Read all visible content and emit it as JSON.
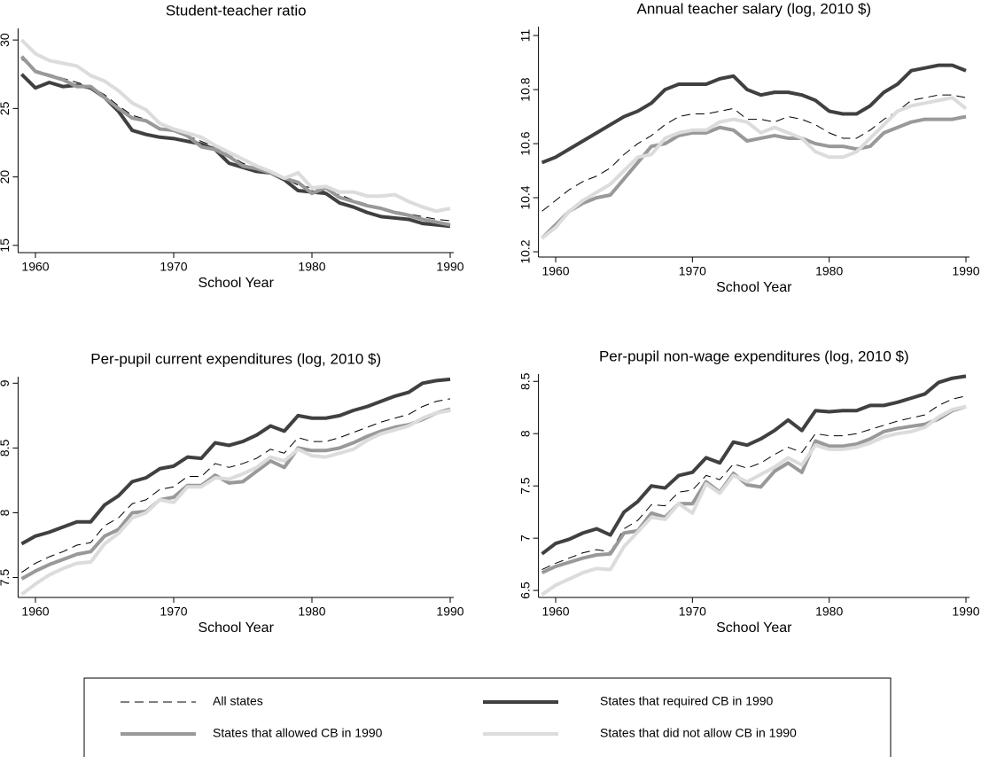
{
  "legend": [
    {
      "name": "All states",
      "color": "#000000",
      "width": 1,
      "dash": "10 6"
    },
    {
      "name": "States that required CB in 1990",
      "color": "#404040",
      "width": 4
    },
    {
      "name": "States that allowed CB in 1990",
      "color": "#999999",
      "width": 4
    },
    {
      "name": "States that did not allow CB in 1990",
      "color": "#dcdcdc",
      "width": 4
    }
  ],
  "chart_data": [
    {
      "type": "line",
      "title": "Student-teacher ratio",
      "x_label": "School Year",
      "x": [
        1959,
        1960,
        1961,
        1962,
        1963,
        1964,
        1965,
        1966,
        1967,
        1968,
        1969,
        1970,
        1971,
        1972,
        1973,
        1974,
        1975,
        1976,
        1977,
        1978,
        1979,
        1980,
        1981,
        1982,
        1983,
        1984,
        1985,
        1986,
        1987,
        1988,
        1989,
        1990
      ],
      "xlim": [
        1959,
        1990
      ],
      "xticks": [
        1960,
        1970,
        1980,
        1990
      ],
      "ylim": [
        14.6,
        30.85
      ],
      "yticks": [
        15,
        20,
        25,
        30
      ],
      "series": [
        {
          "values": [
            28.6,
            27.8,
            27.5,
            27.2,
            26.9,
            26.6,
            26.0,
            25.2,
            24.5,
            24.2,
            23.5,
            23.3,
            23.0,
            22.6,
            22.2,
            21.6,
            21.0,
            20.6,
            20.2,
            19.9,
            19.4,
            19.2,
            18.9,
            18.7,
            18.3,
            18.0,
            17.7,
            17.5,
            17.3,
            17.1,
            16.9,
            16.8
          ]
        },
        {
          "values": [
            27.5,
            26.5,
            26.9,
            26.6,
            26.7,
            26.5,
            25.8,
            24.8,
            23.4,
            23.1,
            22.9,
            22.8,
            22.6,
            22.4,
            22.0,
            21.0,
            20.7,
            20.4,
            20.3,
            19.8,
            19.0,
            18.9,
            18.8,
            18.1,
            17.8,
            17.4,
            17.1,
            17.0,
            16.9,
            16.6,
            16.5,
            16.4
          ]
        },
        {
          "values": [
            28.8,
            27.7,
            27.4,
            27.1,
            26.6,
            26.6,
            25.8,
            25.0,
            24.3,
            24.1,
            23.5,
            23.4,
            23.0,
            22.2,
            22.0,
            21.5,
            20.8,
            20.6,
            20.3,
            19.9,
            19.6,
            18.8,
            19.2,
            18.5,
            18.2,
            17.9,
            17.7,
            17.4,
            17.2,
            16.9,
            16.7,
            16.5
          ]
        },
        {
          "values": [
            30.0,
            29.0,
            28.5,
            28.3,
            28.1,
            27.4,
            27.0,
            26.3,
            25.4,
            24.9,
            23.9,
            23.5,
            23.2,
            22.9,
            22.3,
            21.8,
            21.3,
            20.8,
            20.4,
            19.9,
            20.3,
            19.2,
            19.3,
            18.9,
            18.9,
            18.6,
            18.6,
            18.7,
            18.2,
            17.8,
            17.5,
            17.7
          ]
        }
      ]
    },
    {
      "type": "line",
      "title": "Annual teacher salary (log, 2010 $)",
      "x_label": "School Year",
      "x": [
        1959,
        1960,
        1961,
        1962,
        1963,
        1964,
        1965,
        1966,
        1967,
        1968,
        1969,
        1970,
        1971,
        1972,
        1973,
        1974,
        1975,
        1976,
        1977,
        1978,
        1979,
        1980,
        1981,
        1982,
        1983,
        1984,
        1985,
        1986,
        1987,
        1988,
        1989,
        1990
      ],
      "xlim": [
        1959,
        1990
      ],
      "xticks": [
        1960,
        1970,
        1980,
        1990
      ],
      "ylim": [
        10.187,
        11.033
      ],
      "yticks": [
        10.2,
        10.4,
        10.6,
        10.8,
        11
      ],
      "series": [
        {
          "values": [
            10.35,
            10.39,
            10.43,
            10.46,
            10.48,
            10.51,
            10.56,
            10.6,
            10.63,
            10.67,
            10.7,
            10.71,
            10.71,
            10.72,
            10.73,
            10.69,
            10.69,
            10.68,
            10.7,
            10.69,
            10.67,
            10.64,
            10.62,
            10.62,
            10.65,
            10.69,
            10.72,
            10.76,
            10.77,
            10.78,
            10.78,
            10.77
          ]
        },
        {
          "values": [
            10.53,
            10.55,
            10.58,
            10.61,
            10.64,
            10.67,
            10.7,
            10.72,
            10.75,
            10.8,
            10.82,
            10.82,
            10.82,
            10.84,
            10.85,
            10.8,
            10.78,
            10.79,
            10.79,
            10.78,
            10.76,
            10.72,
            10.71,
            10.71,
            10.74,
            10.79,
            10.82,
            10.87,
            10.88,
            10.89,
            10.89,
            10.87
          ]
        },
        {
          "values": [
            10.25,
            10.3,
            10.35,
            10.38,
            10.4,
            10.41,
            10.47,
            10.53,
            10.59,
            10.6,
            10.63,
            10.64,
            10.64,
            10.66,
            10.65,
            10.61,
            10.62,
            10.63,
            10.62,
            10.62,
            10.6,
            10.59,
            10.59,
            10.58,
            10.59,
            10.64,
            10.66,
            10.68,
            10.69,
            10.69,
            10.69,
            10.7
          ]
        },
        {
          "values": [
            10.25,
            10.29,
            10.35,
            10.39,
            10.42,
            10.45,
            10.5,
            10.55,
            10.56,
            10.62,
            10.64,
            10.65,
            10.65,
            10.68,
            10.69,
            10.68,
            10.64,
            10.66,
            10.64,
            10.62,
            10.57,
            10.55,
            10.55,
            10.57,
            10.62,
            10.67,
            10.72,
            10.74,
            10.75,
            10.76,
            10.77,
            10.73
          ]
        }
      ]
    },
    {
      "type": "line",
      "title": "Per-pupil current expenditures (log, 2010 $)",
      "x_label": "School Year",
      "x": [
        1959,
        1960,
        1961,
        1962,
        1963,
        1964,
        1965,
        1966,
        1967,
        1968,
        1969,
        1970,
        1971,
        1972,
        1973,
        1974,
        1975,
        1976,
        1977,
        1978,
        1979,
        1980,
        1981,
        1982,
        1983,
        1984,
        1985,
        1986,
        1987,
        1988,
        1989,
        1990
      ],
      "xlim": [
        1959,
        1990
      ],
      "xticks": [
        1960,
        1970,
        1980,
        1990
      ],
      "ylim": [
        7.36,
        9.05
      ],
      "yticks": [
        7.5,
        8,
        8.5,
        9
      ],
      "series": [
        {
          "values": [
            7.54,
            7.61,
            7.66,
            7.7,
            7.75,
            7.77,
            7.9,
            7.96,
            8.07,
            8.1,
            8.18,
            8.2,
            8.28,
            8.28,
            8.38,
            8.35,
            8.38,
            8.42,
            8.49,
            8.46,
            8.58,
            8.55,
            8.55,
            8.58,
            8.62,
            8.66,
            8.7,
            8.73,
            8.76,
            8.82,
            8.86,
            8.88
          ]
        },
        {
          "values": [
            7.76,
            7.82,
            7.85,
            7.89,
            7.93,
            7.93,
            8.06,
            8.13,
            8.24,
            8.27,
            8.34,
            8.36,
            8.43,
            8.42,
            8.54,
            8.52,
            8.55,
            8.6,
            8.67,
            8.63,
            8.75,
            8.73,
            8.73,
            8.75,
            8.79,
            8.82,
            8.86,
            8.9,
            8.93,
            9.0,
            9.02,
            9.03
          ]
        },
        {
          "values": [
            7.49,
            7.55,
            7.6,
            7.64,
            7.68,
            7.7,
            7.82,
            7.87,
            8.0,
            8.01,
            8.1,
            8.12,
            8.21,
            8.21,
            8.29,
            8.23,
            8.24,
            8.32,
            8.4,
            8.35,
            8.5,
            8.48,
            8.48,
            8.5,
            8.54,
            8.59,
            8.63,
            8.66,
            8.68,
            8.72,
            8.77,
            8.8
          ]
        },
        {
          "values": [
            7.37,
            7.45,
            7.52,
            7.57,
            7.61,
            7.62,
            7.76,
            7.84,
            7.96,
            8.0,
            8.1,
            8.08,
            8.2,
            8.2,
            8.27,
            8.26,
            8.3,
            8.35,
            8.43,
            8.4,
            8.49,
            8.44,
            8.43,
            8.46,
            8.49,
            8.56,
            8.61,
            8.64,
            8.67,
            8.73,
            8.77,
            8.79
          ]
        }
      ]
    },
    {
      "type": "line",
      "title": "Per-pupil non-wage expenditures (log, 2010 $)",
      "x_label": "School Year",
      "x": [
        1959,
        1960,
        1961,
        1962,
        1963,
        1964,
        1965,
        1966,
        1967,
        1968,
        1969,
        1970,
        1971,
        1972,
        1973,
        1974,
        1975,
        1976,
        1977,
        1978,
        1979,
        1980,
        1981,
        1982,
        1983,
        1984,
        1985,
        1986,
        1987,
        1988,
        1989,
        1990
      ],
      "xlim": [
        1959,
        1990
      ],
      "xticks": [
        1960,
        1970,
        1980,
        1990
      ],
      "ylim": [
        6.45,
        8.57
      ],
      "yticks": [
        6.5,
        7,
        7.5,
        8,
        8.5
      ],
      "series": [
        {
          "values": [
            6.7,
            6.76,
            6.81,
            6.86,
            6.89,
            6.87,
            7.09,
            7.17,
            7.32,
            7.31,
            7.44,
            7.46,
            7.6,
            7.56,
            7.71,
            7.67,
            7.72,
            7.8,
            7.87,
            7.82,
            8.0,
            7.98,
            7.98,
            8.0,
            8.04,
            8.08,
            8.12,
            8.15,
            8.18,
            8.27,
            8.33,
            8.36
          ]
        },
        {
          "values": [
            6.85,
            6.95,
            6.99,
            7.05,
            7.09,
            7.03,
            7.25,
            7.35,
            7.5,
            7.48,
            7.6,
            7.63,
            7.77,
            7.72,
            7.92,
            7.89,
            7.95,
            8.03,
            8.13,
            8.03,
            8.22,
            8.21,
            8.22,
            8.22,
            8.27,
            8.27,
            8.3,
            8.34,
            8.38,
            8.49,
            8.53,
            8.55
          ]
        },
        {
          "values": [
            6.67,
            6.73,
            6.77,
            6.81,
            6.84,
            6.85,
            7.05,
            7.07,
            7.24,
            7.2,
            7.33,
            7.33,
            7.54,
            7.44,
            7.62,
            7.51,
            7.49,
            7.64,
            7.72,
            7.63,
            7.93,
            7.88,
            7.88,
            7.9,
            7.95,
            8.02,
            8.05,
            8.07,
            8.09,
            8.14,
            8.22,
            8.26
          ]
        },
        {
          "values": [
            6.46,
            6.55,
            6.61,
            6.67,
            6.71,
            6.7,
            6.92,
            7.06,
            7.2,
            7.18,
            7.33,
            7.24,
            7.52,
            7.43,
            7.6,
            7.54,
            7.61,
            7.68,
            7.77,
            7.7,
            7.89,
            7.85,
            7.85,
            7.87,
            7.91,
            7.97,
            8.0,
            8.02,
            8.06,
            8.16,
            8.23,
            8.26
          ]
        }
      ]
    }
  ]
}
